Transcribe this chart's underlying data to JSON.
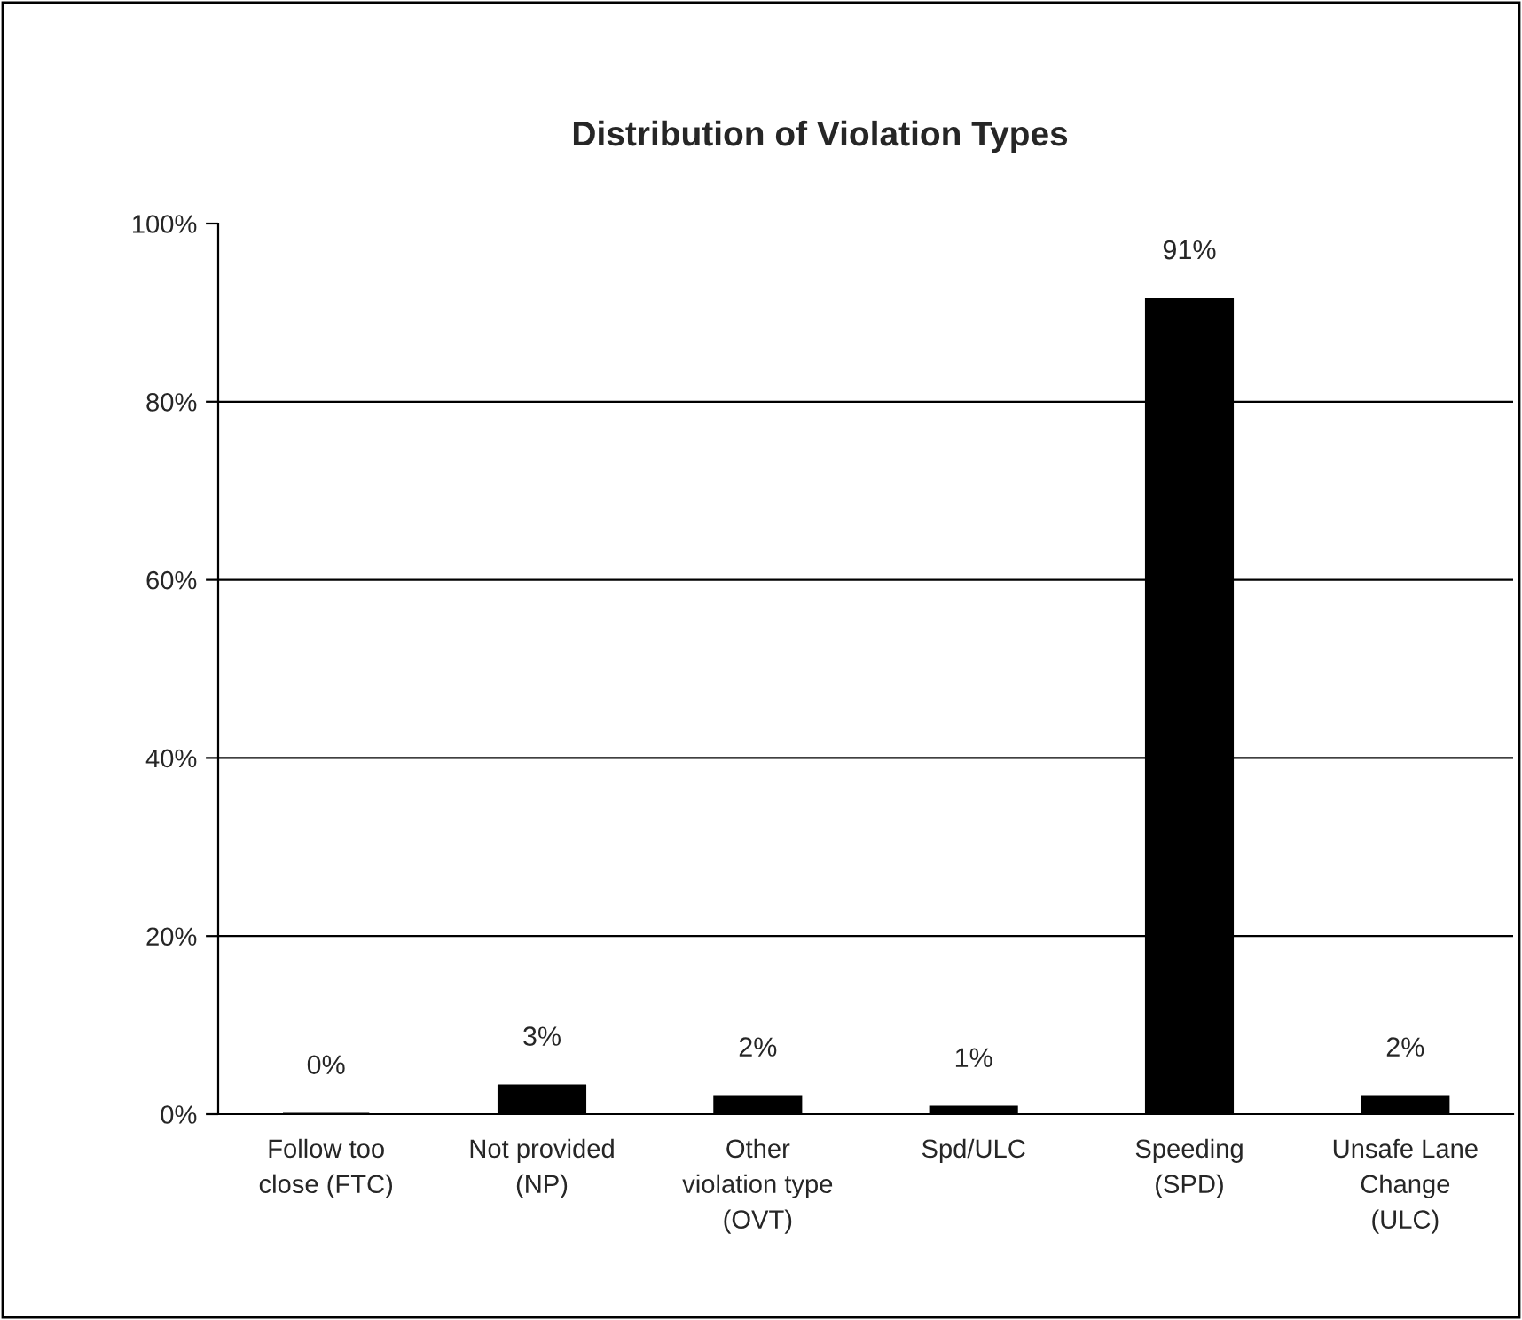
{
  "chart_data": {
    "type": "bar",
    "title": "Distribution of Violation Types",
    "categories": [
      "Follow too\nclose (FTC)",
      "Not provided\n(NP)",
      "Other\nviolation type\n(OVT)",
      "Spd/ULC",
      "Speeding\n(SPD)",
      "Unsafe Lane\nChange\n(ULC)"
    ],
    "values": [
      0,
      3.2,
      2,
      0.8,
      91.5,
      2
    ],
    "value_labels": [
      "0%",
      "3%",
      "2%",
      "1%",
      "91%",
      "2%"
    ],
    "color": "#000000",
    "ylim": [
      0,
      100
    ],
    "yticks": [
      {
        "value": 0,
        "label": "0%"
      },
      {
        "value": 20,
        "label": "20%"
      },
      {
        "value": 40,
        "label": "40%"
      },
      {
        "value": 60,
        "label": "60%"
      },
      {
        "value": 80,
        "label": "80%"
      },
      {
        "value": 100,
        "label": "100%"
      }
    ],
    "grid": "y"
  }
}
